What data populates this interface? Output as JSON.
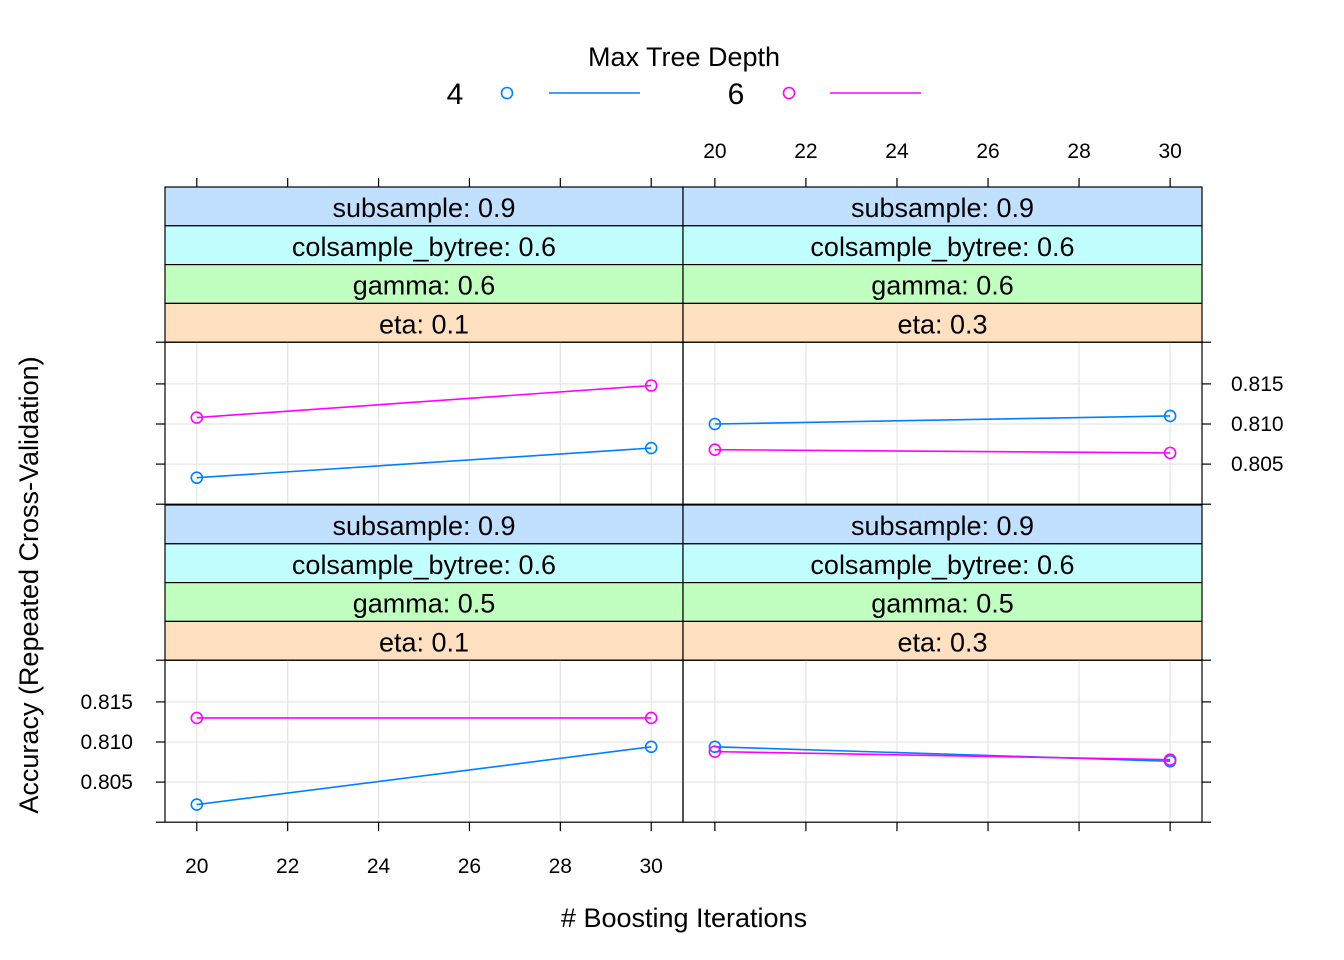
{
  "chart_data": {
    "type": "line",
    "legend": {
      "title": "Max Tree Depth",
      "placement": "top",
      "entries": [
        {
          "label": "4",
          "color": "#0080ff"
        },
        {
          "label": "6",
          "color": "#ff00ff"
        }
      ]
    },
    "xlabel": "# Boosting Iterations",
    "ylabel": "Accuracy (Repeated Cross-Validation)",
    "xlim": [
      19.3,
      30.7
    ],
    "ylim": [
      0.8,
      0.8202
    ],
    "x_ticks": [
      20,
      22,
      24,
      26,
      28,
      30
    ],
    "y_ticks": [
      0.805,
      0.81,
      0.815
    ],
    "x_tick_labels": [
      "20",
      "22",
      "24",
      "26",
      "28",
      "30"
    ],
    "y_tick_labels": [
      "0.805",
      "0.810",
      "0.815"
    ],
    "grid": true,
    "strip_colors": [
      "#c1e0ff",
      "#c1ffff",
      "#c1ffc1",
      "#ffe0c1"
    ],
    "panels": [
      {
        "row": 0,
        "col": 0,
        "strips": [
          "subsample: 0.9",
          "colsample_bytree: 0.6",
          "gamma: 0.6",
          "eta: 0.1"
        ],
        "series": [
          {
            "name": "4",
            "x": [
              20,
              30
            ],
            "y": [
              0.8033,
              0.807
            ]
          },
          {
            "name": "6",
            "x": [
              20,
              30
            ],
            "y": [
              0.8108,
              0.8148
            ]
          }
        ]
      },
      {
        "row": 0,
        "col": 1,
        "strips": [
          "subsample: 0.9",
          "colsample_bytree: 0.6",
          "gamma: 0.6",
          "eta: 0.3"
        ],
        "series": [
          {
            "name": "4",
            "x": [
              20,
              30
            ],
            "y": [
              0.81,
              0.811
            ]
          },
          {
            "name": "6",
            "x": [
              20,
              30
            ],
            "y": [
              0.8068,
              0.8064
            ]
          }
        ]
      },
      {
        "row": 1,
        "col": 0,
        "strips": [
          "subsample: 0.9",
          "colsample_bytree: 0.6",
          "gamma: 0.5",
          "eta: 0.1"
        ],
        "series": [
          {
            "name": "4",
            "x": [
              20,
              30
            ],
            "y": [
              0.8022,
              0.8094
            ]
          },
          {
            "name": "6",
            "x": [
              20,
              30
            ],
            "y": [
              0.813,
              0.813
            ]
          }
        ]
      },
      {
        "row": 1,
        "col": 1,
        "strips": [
          "subsample: 0.9",
          "colsample_bytree: 0.6",
          "gamma: 0.5",
          "eta: 0.3"
        ],
        "series": [
          {
            "name": "4",
            "x": [
              20,
              30
            ],
            "y": [
              0.8094,
              0.8076
            ]
          },
          {
            "name": "6",
            "x": [
              20,
              30
            ],
            "y": [
              0.8088,
              0.8078
            ]
          }
        ]
      }
    ]
  }
}
